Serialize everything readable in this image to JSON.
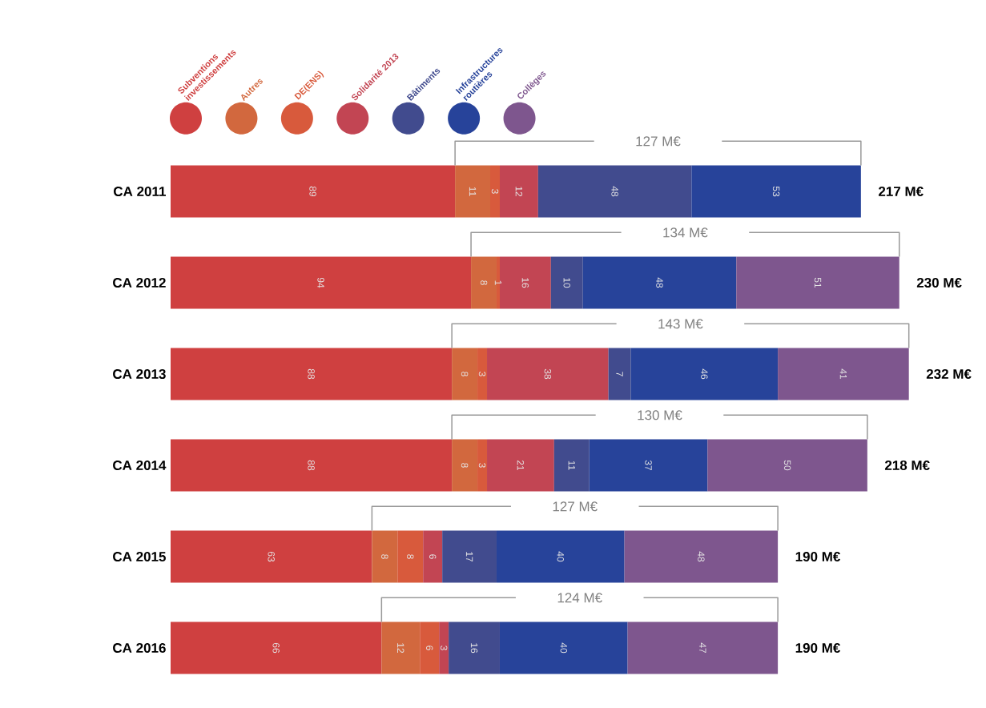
{
  "chart_data": {
    "type": "bar",
    "orientation": "horizontal",
    "stacked": true,
    "data_labels": true,
    "legend": "top",
    "categories": [
      "CA 2011",
      "CA 2012",
      "CA 2013",
      "CA 2014",
      "CA 2015",
      "CA 2016"
    ],
    "series": [
      {
        "name": "Subventions investissements",
        "color": "#cf4040",
        "values": [
          89,
          94,
          88,
          88,
          63,
          66
        ]
      },
      {
        "name": "Autres",
        "color": "#d2683e",
        "values": [
          11,
          8,
          8,
          8,
          8,
          12
        ]
      },
      {
        "name": "DE(ENS)",
        "color": "#d85a3c",
        "values": [
          3,
          1,
          3,
          3,
          8,
          6
        ]
      },
      {
        "name": "Solidarité 2013",
        "color": "#c24553",
        "values": [
          12,
          16,
          38,
          21,
          6,
          3
        ]
      },
      {
        "name": "Bâtiments",
        "color": "#414b8e",
        "values": [
          48,
          10,
          7,
          11,
          17,
          16
        ]
      },
      {
        "name": "Infrastructures routières",
        "color": "#27439a",
        "values": [
          53,
          48,
          46,
          37,
          40,
          40
        ]
      },
      {
        "name": "Collèges",
        "color": "#7e568e",
        "values": [
          null,
          51,
          41,
          50,
          48,
          47
        ]
      }
    ],
    "totals": [
      "217 M€",
      "230 M€",
      "232 M€",
      "218 M€",
      "190 M€",
      "190 M€"
    ],
    "annotations": [
      "127 M€",
      "134 M€",
      "143 M€",
      "130 M€",
      "127 M€",
      "124 M€"
    ]
  }
}
